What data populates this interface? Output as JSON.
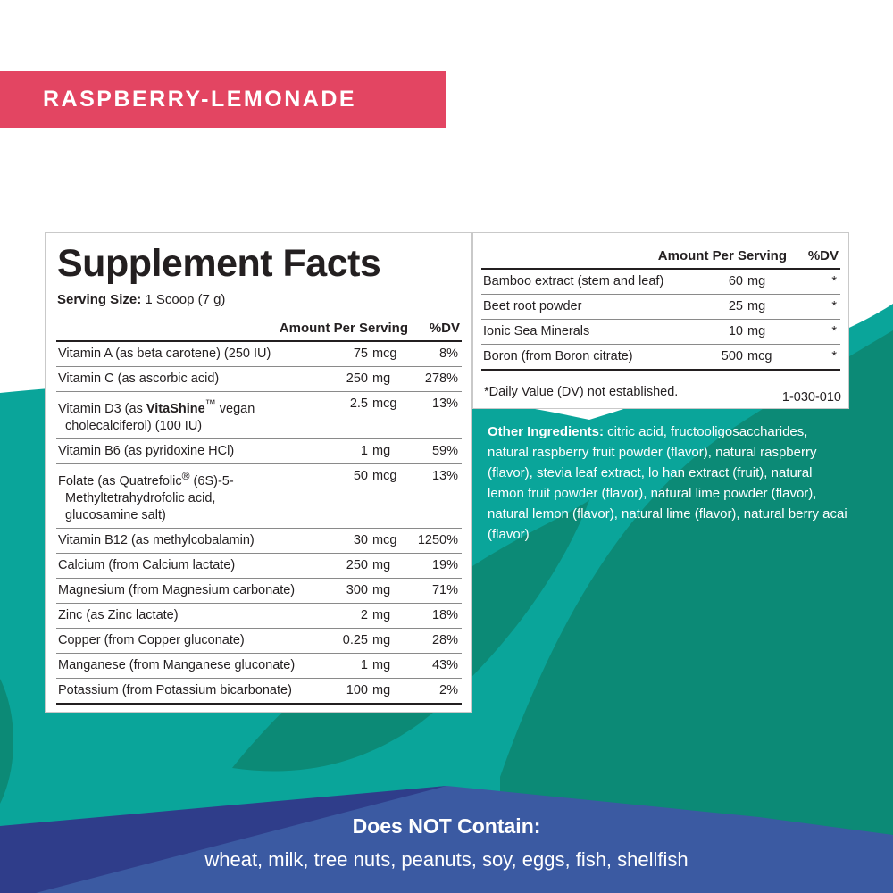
{
  "colors": {
    "banner": "#e34562",
    "teal": "#0aa59a",
    "dark_teal": "#0c8a76",
    "blue": "#3b5aa2",
    "navy": "#2f3d8a"
  },
  "flavor": "RASPBERRY-LEMONADE",
  "facts": {
    "title": "Supplement Facts",
    "serving_label": "Serving Size:",
    "serving_value": "1 Scoop (7 g)",
    "header_amount": "Amount Per Serving",
    "header_dv": "%DV",
    "rows": [
      {
        "name": "Vitamin A (as beta carotene) (250 IU)",
        "amount": "75",
        "unit": "mcg",
        "dv": "8%"
      },
      {
        "name": "Vitamin C (as ascorbic acid)",
        "amount": "250",
        "unit": "mg",
        "dv": "278%"
      },
      {
        "name_pre": "Vitamin D3 (as ",
        "name_brand": "VitaShine",
        "name_tm": "™",
        "name_post": " vegan",
        "name_line2": "cholecalciferol) (100 IU)",
        "amount": "2.5",
        "unit": "mcg",
        "dv": "13%"
      },
      {
        "name": "Vitamin B6 (as pyridoxine HCl)",
        "amount": "1",
        "unit": "mg",
        "dv": "59%"
      },
      {
        "name_pre": "Folate (as Quatrefolic",
        "name_reg": "®",
        "name_post": " (6S)-5-",
        "name_line2": "Methyltetrahydrofolic acid,",
        "name_line3": "glucosamine salt)",
        "amount": "50",
        "unit": "mcg",
        "dv": "13%"
      },
      {
        "name": "Vitamin B12 (as methylcobalamin)",
        "amount": "30",
        "unit": "mcg",
        "dv": "1250%"
      },
      {
        "name": "Calcium (from Calcium lactate)",
        "amount": "250",
        "unit": "mg",
        "dv": "19%"
      },
      {
        "name": "Magnesium (from Magnesium carbonate)",
        "amount": "300",
        "unit": "mg",
        "dv": "71%"
      },
      {
        "name": "Zinc (as Zinc lactate)",
        "amount": "2",
        "unit": "mg",
        "dv": "18%"
      },
      {
        "name": "Copper (from Copper gluconate)",
        "amount": "0.25",
        "unit": "mg",
        "dv": "28%"
      },
      {
        "name": "Manganese (from Manganese gluconate)",
        "amount": "1",
        "unit": "mg",
        "dv": "43%"
      },
      {
        "name": "Potassium (from Potassium bicarbonate)",
        "amount": "100",
        "unit": "mg",
        "dv": "2%"
      }
    ]
  },
  "facts2": {
    "header_amount": "Amount Per Serving",
    "header_dv": "%DV",
    "rows": [
      {
        "name": "Bamboo extract (stem and leaf)",
        "amount": "60",
        "unit": "mg",
        "dv": "*"
      },
      {
        "name": "Beet root powder",
        "amount": "25",
        "unit": "mg",
        "dv": "*"
      },
      {
        "name": "Ionic Sea Minerals",
        "amount": "10",
        "unit": "mg",
        "dv": "*"
      },
      {
        "name": "Boron (from Boron citrate)",
        "amount": "500",
        "unit": "mcg",
        "dv": "*"
      }
    ],
    "dv_note": "*Daily Value (DV) not established.",
    "lot_code": "1-030-010"
  },
  "other_ingredients": {
    "label": "Other Ingredients:",
    "text": " citric acid, fructooligosaccharides, natural raspberry fruit powder (flavor), natural raspberry (flavor), stevia leaf extract, lo han extract (fruit), natural lemon fruit powder (flavor), natural lime powder (flavor), natural lemon (flavor), natural lime (flavor), natural berry acai (flavor)"
  },
  "allergens": {
    "heading": "Does NOT Contain:",
    "list": "wheat, milk, tree nuts, peanuts, soy, eggs, fish, shellfish"
  }
}
